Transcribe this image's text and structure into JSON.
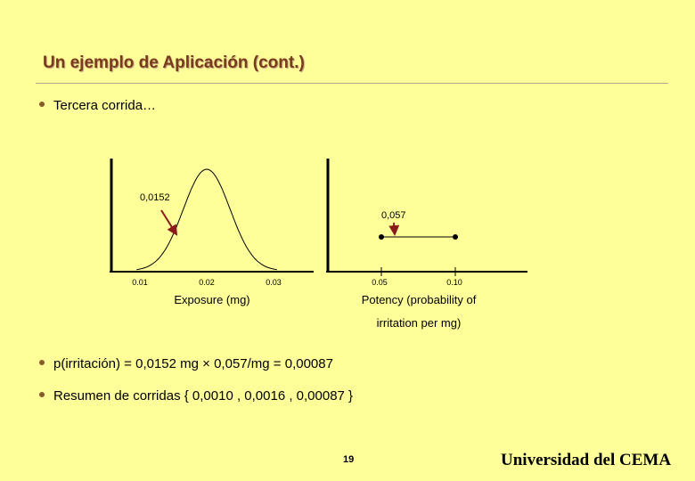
{
  "slide": {
    "title": "Un ejemplo de Aplicación (cont.)",
    "bullets": [
      "Tercera corrida…",
      "p(irritación) = 0,0152 mg × 0,057/mg = 0,00087",
      "Resumen de corridas { 0,0010 , 0,0016 , 0,00087 }"
    ],
    "page_number": "19",
    "organization": "Universidad del CEMA"
  },
  "colors": {
    "background": "#ffff99",
    "title": "#7a3b1d",
    "arrow": "#8b1a1a"
  },
  "chart_data": [
    {
      "type": "line",
      "title": "",
      "xlabel": "Exposure (mg)",
      "ylabel": "",
      "x_ticks": [
        "0.01",
        "0.02",
        "0.03"
      ],
      "curve": "normal distribution centered at 0.02",
      "annotation": {
        "label": "0,0152",
        "x": 0.0152
      }
    },
    {
      "type": "line",
      "title": "",
      "xlabel_lines": [
        "Potency (probability of",
        "irritation per mg)"
      ],
      "ylabel": "",
      "x_ticks": [
        "0.05",
        "0.10"
      ],
      "segment": {
        "x_start": 0.05,
        "x_end": 0.1
      },
      "annotation": {
        "label": "0,057",
        "x": 0.057
      }
    }
  ]
}
